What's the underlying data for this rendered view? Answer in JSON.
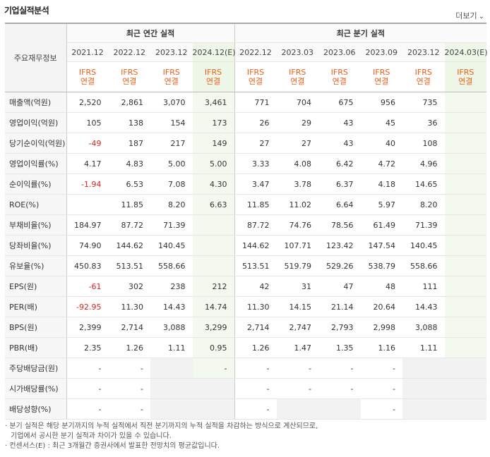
{
  "header": {
    "title": "기업실적분석",
    "more_label": "더보기",
    "more_icon": "chevron-down-icon"
  },
  "table": {
    "corner_label": "주요재무정보",
    "group_annual": "최근 연간 실적",
    "group_quarter": "최근 분기 실적",
    "periods": [
      "2021.12",
      "2022.12",
      "2023.12",
      "2024.12(E)",
      "2022.12",
      "2023.03",
      "2023.06",
      "2023.09",
      "2023.12",
      "2024.03(E)"
    ],
    "ifrs_top": "IFRS",
    "ifrs_bottom": "연결",
    "rows": [
      {
        "label": "매출액(억원)",
        "values": [
          "2,520",
          "2,861",
          "3,070",
          "3,461",
          "771",
          "704",
          "675",
          "956",
          "735",
          ""
        ]
      },
      {
        "label": "영업이익(억원)",
        "values": [
          "105",
          "138",
          "154",
          "173",
          "26",
          "29",
          "43",
          "45",
          "36",
          ""
        ]
      },
      {
        "label": "당기순이익(억원)",
        "values": [
          "-49",
          "187",
          "217",
          "149",
          "27",
          "27",
          "43",
          "40",
          "108",
          ""
        ]
      },
      {
        "label": "영업이익률(%)",
        "values": [
          "4.17",
          "4.83",
          "5.00",
          "5.00",
          "3.33",
          "4.08",
          "6.42",
          "4.72",
          "4.96",
          ""
        ]
      },
      {
        "label": "순이익률(%)",
        "values": [
          "-1.94",
          "6.53",
          "7.08",
          "4.30",
          "3.47",
          "3.78",
          "6.37",
          "4.18",
          "14.65",
          ""
        ]
      },
      {
        "label": "ROE(%)",
        "values": [
          "",
          "11.85",
          "8.20",
          "6.63",
          "11.85",
          "11.02",
          "6.64",
          "5.97",
          "8.20",
          ""
        ]
      },
      {
        "label": "부채비율(%)",
        "values": [
          "184.97",
          "87.72",
          "71.39",
          "",
          "87.72",
          "74.76",
          "78.56",
          "61.49",
          "71.39",
          ""
        ]
      },
      {
        "label": "당좌비율(%)",
        "values": [
          "74.90",
          "144.62",
          "140.45",
          "",
          "144.62",
          "107.71",
          "123.42",
          "147.54",
          "140.45",
          ""
        ]
      },
      {
        "label": "유보율(%)",
        "values": [
          "450.83",
          "513.51",
          "558.66",
          "",
          "513.51",
          "519.79",
          "529.26",
          "538.79",
          "558.66",
          ""
        ]
      },
      {
        "label": "EPS(원)",
        "values": [
          "-61",
          "302",
          "238",
          "212",
          "42",
          "31",
          "47",
          "48",
          "111",
          ""
        ]
      },
      {
        "label": "PER(배)",
        "values": [
          "-92.95",
          "11.30",
          "14.43",
          "14.74",
          "11.30",
          "14.15",
          "21.14",
          "20.64",
          "14.43",
          ""
        ]
      },
      {
        "label": "BPS(원)",
        "values": [
          "2,399",
          "2,714",
          "3,088",
          "3,299",
          "2,714",
          "2,747",
          "2,793",
          "2,998",
          "3,088",
          ""
        ]
      },
      {
        "label": "PBR(배)",
        "values": [
          "2.35",
          "1.26",
          "1.11",
          "0.95",
          "1.26",
          "1.47",
          "1.35",
          "1.16",
          "1.11",
          ""
        ]
      },
      {
        "label": "주당배당금(원)",
        "values": [
          "-",
          "-",
          "",
          "-",
          "-",
          "-",
          "-",
          "-",
          "",
          ""
        ]
      },
      {
        "label": "시가배당률(%)",
        "values": [
          "-",
          "-",
          "",
          "",
          "-",
          "-",
          "-",
          "-",
          "",
          ""
        ]
      },
      {
        "label": "배당성향(%)",
        "values": [
          "-",
          "-",
          "",
          "",
          "-",
          "",
          "",
          "-",
          "",
          ""
        ]
      }
    ]
  },
  "footnotes": [
    "· 분기 실적은 해당 분기까지의 누적 실적에서 직전 분기까지의 누적 실적을 차감하는 방식으로 계산되므로,",
    "  기업에서 공시한 분기 실적과 차이가 있을 수 있습니다.",
    "· 컨센서스(E) : 최근 3개월간 증권사에서 발표한 전망치의 평균값입니다."
  ],
  "colors": {
    "ifrs": "#e8601c",
    "negative": "#e01f1f",
    "estimate_bg": "#f3f9ee"
  }
}
